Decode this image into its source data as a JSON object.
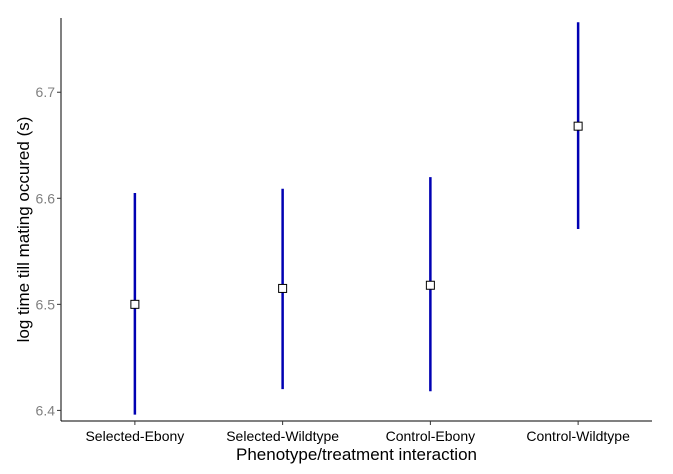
{
  "chart_data": {
    "type": "scatter",
    "title": "",
    "xlabel": "Phenotype/treatment interaction",
    "ylabel": "log time till mating occured (s)",
    "ylim": [
      6.39,
      6.77
    ],
    "yticks": [
      6.4,
      6.5,
      6.6,
      6.7
    ],
    "grid": false,
    "categories": [
      "Selected-Ebony",
      "Selected-Wildtype",
      "Control-Ebony",
      "Control-Wildtype"
    ],
    "values": [
      6.5,
      6.515,
      6.518,
      6.668
    ],
    "error_low": [
      6.396,
      6.42,
      6.418,
      6.571
    ],
    "error_high": [
      6.605,
      6.609,
      6.62,
      6.766
    ],
    "colors": {
      "error_bar": "#0000b3",
      "point_fill": "#ffffff",
      "point_stroke": "#000000",
      "axis": "#000000"
    }
  }
}
